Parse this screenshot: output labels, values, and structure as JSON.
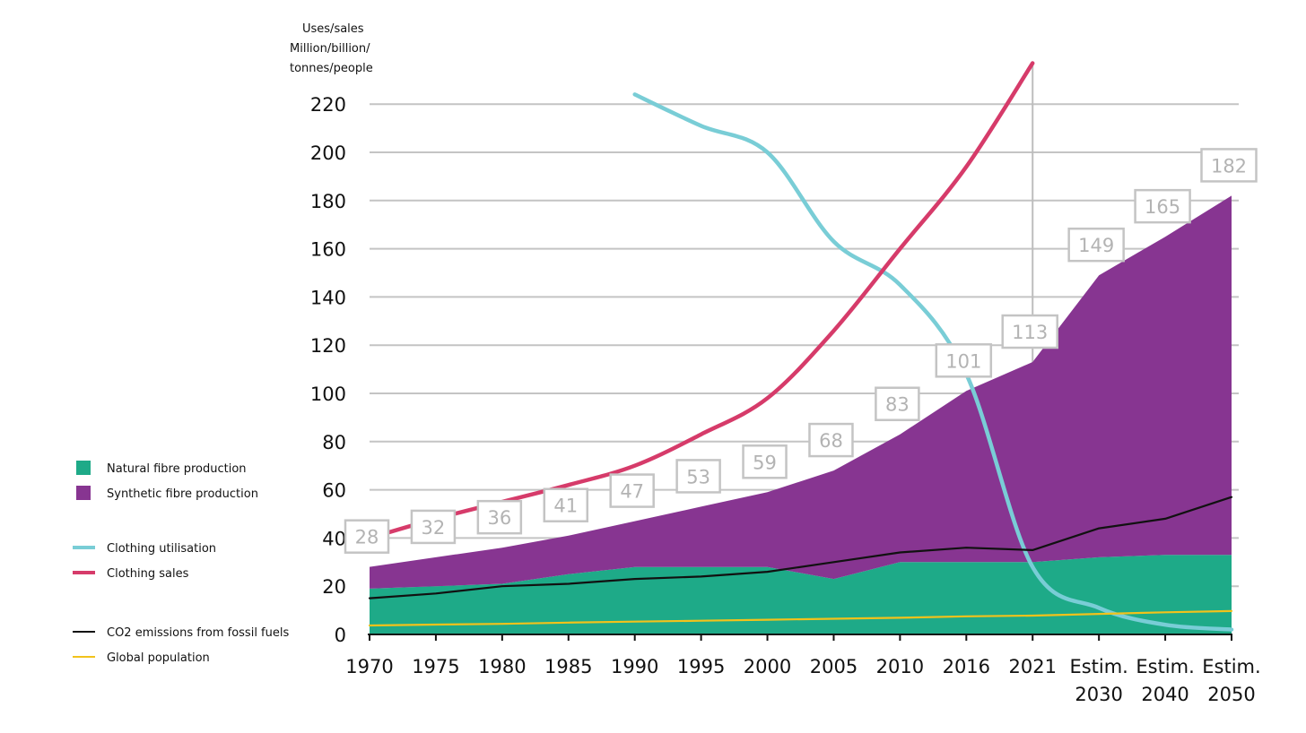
{
  "chart_data": {
    "type": "area",
    "title": "",
    "ylabel_lines": [
      "Uses/sales",
      "Million/billion/",
      "tonnes/people"
    ],
    "xlabel": "",
    "categories": [
      [
        "1970"
      ],
      [
        "1975"
      ],
      [
        "1980"
      ],
      [
        "1985"
      ],
      [
        "1990"
      ],
      [
        "1995"
      ],
      [
        "2000"
      ],
      [
        "2005"
      ],
      [
        "2010"
      ],
      [
        "2016"
      ],
      [
        "2021"
      ],
      [
        "Estim.",
        "2030"
      ],
      [
        "Estim.",
        "2040"
      ],
      [
        "Estim.",
        "2050"
      ]
    ],
    "ylim": [
      0,
      230
    ],
    "yticks": [
      0,
      20,
      40,
      60,
      80,
      100,
      120,
      140,
      160,
      180,
      200,
      220
    ],
    "grid": true,
    "reference_line_category": "2021",
    "legend_position": "left",
    "series": [
      {
        "name": "Natural fibre production",
        "type": "area",
        "color": "#1eaa88",
        "values": [
          19,
          20,
          21,
          25,
          28,
          28,
          28,
          23,
          30,
          30,
          30,
          32,
          33,
          33
        ]
      },
      {
        "name": "Synthetic fibre production",
        "type": "area",
        "color": "#873591",
        "values": [
          9,
          12,
          15,
          16,
          19,
          25,
          31,
          45,
          53,
          71,
          83,
          117,
          132,
          149
        ]
      },
      {
        "name": "Clothing utilisation",
        "type": "line",
        "color": "#79cdd6",
        "x": [
          "1990",
          "1995",
          "2000",
          "2005",
          "2010",
          "2016",
          "2021",
          "Estim. 2030",
          "Estim. 2040",
          "Estim. 2050"
        ],
        "values": [
          224,
          211,
          200,
          163,
          145,
          108,
          28,
          11,
          4,
          2
        ]
      },
      {
        "name": "Clothing sales",
        "type": "line",
        "color": "#d63b6a",
        "x": [
          "1970",
          "1975",
          "1980",
          "1985",
          "1990",
          "1995",
          "2000",
          "2005",
          "2010",
          "2016",
          "2021"
        ],
        "values": [
          40,
          48,
          55,
          62,
          70,
          83,
          98,
          126,
          160,
          194,
          237
        ]
      },
      {
        "name": "CO2 emissions from fossil fuels",
        "type": "line",
        "color": "#111111",
        "values": [
          15,
          17,
          20,
          21,
          23,
          24,
          26,
          30,
          34,
          36,
          35,
          44,
          48,
          57
        ]
      },
      {
        "name": "Global population",
        "type": "line",
        "color": "#f2c21b",
        "values": [
          3.7,
          4.1,
          4.4,
          4.9,
          5.3,
          5.7,
          6.1,
          6.5,
          6.9,
          7.5,
          7.8,
          8.5,
          9.2,
          9.7
        ]
      }
    ],
    "total_labels": [
      {
        "category": "1970",
        "text": "28"
      },
      {
        "category": "1975",
        "text": "32"
      },
      {
        "category": "1980",
        "text": "36"
      },
      {
        "category": "1985",
        "text": "41"
      },
      {
        "category": "1990",
        "text": "47"
      },
      {
        "category": "1995",
        "text": "53"
      },
      {
        "category": "2000",
        "text": "59"
      },
      {
        "category": "2005",
        "text": "68"
      },
      {
        "category": "2010",
        "text": "83"
      },
      {
        "category": "2016",
        "text": "101"
      },
      {
        "category": "2021",
        "text": "113"
      },
      {
        "category": "Estim. 2030",
        "text": "149"
      },
      {
        "category": "Estim. 2040",
        "text": "165"
      },
      {
        "category": "Estim. 2050",
        "text": "182"
      }
    ],
    "legend_groups": [
      {
        "items": [
          {
            "label": "Natural fibre production",
            "marker": "square",
            "color": "#1eaa88"
          },
          {
            "label": "Synthetic fibre production",
            "marker": "square",
            "color": "#873591"
          }
        ]
      },
      {
        "items": [
          {
            "label": "Clothing utilisation",
            "marker": "thick-line",
            "color": "#79cdd6"
          },
          {
            "label": "Clothing sales",
            "marker": "thick-line",
            "color": "#d63b6a"
          }
        ]
      },
      {
        "items": [
          {
            "label": "CO2 emissions from fossil fuels",
            "marker": "line",
            "color": "#111111"
          },
          {
            "label": "Global population",
            "marker": "line",
            "color": "#f2c21b"
          }
        ]
      }
    ]
  }
}
